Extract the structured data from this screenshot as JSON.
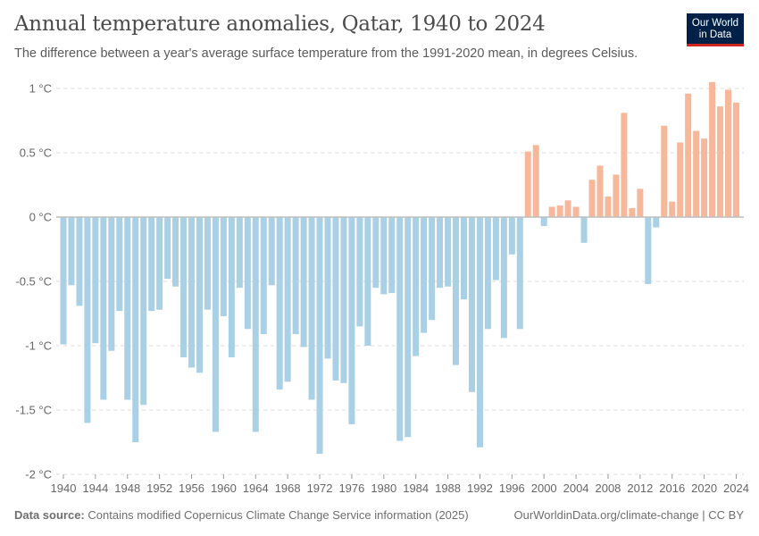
{
  "header": {
    "title": "Annual temperature anomalies, Qatar, 1940 to 2024",
    "subtitle": "The difference between a year's average surface temperature from the 1991-2020 mean, in degrees Celsius.",
    "logo_line1": "Our World",
    "logo_line2": "in Data"
  },
  "footer": {
    "source_label": "Data source:",
    "source_text": "Contains modified Copernicus Climate Change Service information (2025)",
    "url_text": "OurWorldinData.org/climate-change | CC BY"
  },
  "colors": {
    "negative": "#a9d0e4",
    "positive": "#f6b79a",
    "logo_bg": "#002147",
    "logo_accent": "#ce261e"
  },
  "chart_data": {
    "type": "bar",
    "title": "Annual temperature anomalies, Qatar, 1940 to 2024",
    "subtitle": "The difference between a year's average surface temperature from the 1991-2020 mean, in degrees Celsius.",
    "xlabel": "",
    "ylabel": "",
    "unit": "°C",
    "ylim": [
      -2,
      1
    ],
    "yticks": [
      1,
      0.5,
      0,
      -0.5,
      -1,
      -1.5,
      -2
    ],
    "ytick_labels": [
      "1 °C",
      "0.5 °C",
      "0 °C",
      "-0.5 °C",
      "-1 °C",
      "-1.5 °C",
      "-2 °C"
    ],
    "xticks": [
      1940,
      1944,
      1948,
      1952,
      1956,
      1960,
      1964,
      1968,
      1972,
      1976,
      1980,
      1984,
      1988,
      1992,
      1996,
      2000,
      2004,
      2008,
      2012,
      2016,
      2020,
      2024
    ],
    "grid": "horizontal-dashed",
    "legend": "none",
    "x": [
      1940,
      1941,
      1942,
      1943,
      1944,
      1945,
      1946,
      1947,
      1948,
      1949,
      1950,
      1951,
      1952,
      1953,
      1954,
      1955,
      1956,
      1957,
      1958,
      1959,
      1960,
      1961,
      1962,
      1963,
      1964,
      1965,
      1966,
      1967,
      1968,
      1969,
      1970,
      1971,
      1972,
      1973,
      1974,
      1975,
      1976,
      1977,
      1978,
      1979,
      1980,
      1981,
      1982,
      1983,
      1984,
      1985,
      1986,
      1987,
      1988,
      1989,
      1990,
      1991,
      1992,
      1993,
      1994,
      1995,
      1996,
      1997,
      1998,
      1999,
      2000,
      2001,
      2002,
      2003,
      2004,
      2005,
      2006,
      2007,
      2008,
      2009,
      2010,
      2011,
      2012,
      2013,
      2014,
      2015,
      2016,
      2017,
      2018,
      2019,
      2020,
      2021,
      2022,
      2023,
      2024
    ],
    "values": [
      -0.99,
      -0.53,
      -0.69,
      -1.6,
      -0.98,
      -1.42,
      -1.04,
      -0.73,
      -1.42,
      -1.75,
      -1.46,
      -0.73,
      -0.72,
      -0.48,
      -0.54,
      -1.09,
      -1.17,
      -1.21,
      -0.72,
      -1.67,
      -0.77,
      -1.09,
      -0.55,
      -0.87,
      -1.67,
      -0.91,
      -0.53,
      -1.34,
      -1.28,
      -0.91,
      -1.01,
      -1.42,
      -1.84,
      -1.1,
      -1.27,
      -1.29,
      -1.61,
      -0.85,
      -1.0,
      -0.55,
      -0.6,
      -0.59,
      -1.74,
      -1.71,
      -1.08,
      -0.9,
      -0.8,
      -0.55,
      -0.54,
      -1.15,
      -0.64,
      -1.36,
      -1.79,
      -0.87,
      -0.49,
      -0.94,
      -0.29,
      -0.87,
      0.51,
      0.56,
      -0.07,
      0.08,
      0.09,
      0.13,
      0.08,
      -0.2,
      0.29,
      0.4,
      0.16,
      0.33,
      0.81,
      0.07,
      0.22,
      -0.52,
      -0.08,
      0.71,
      0.12,
      0.58,
      0.96,
      0.67,
      0.61,
      1.05,
      0.86,
      0.99,
      0.89
    ]
  }
}
